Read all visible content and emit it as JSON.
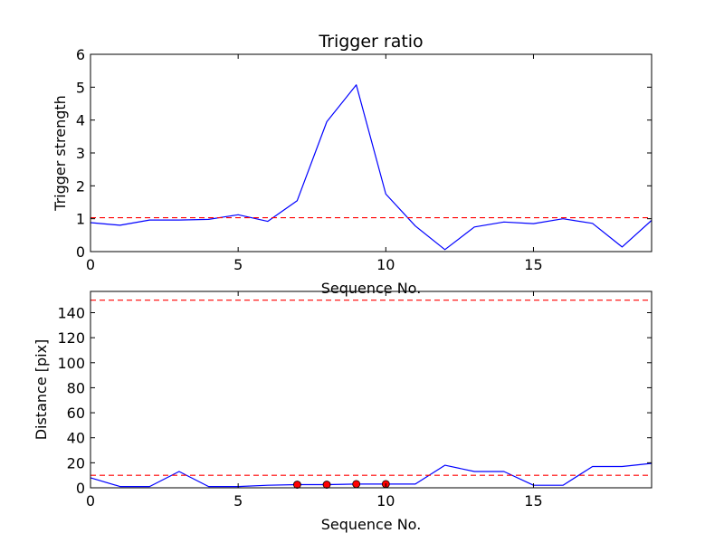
{
  "chart_data": [
    {
      "type": "line",
      "title": "Trigger ratio",
      "xlabel": "Sequence No.",
      "ylabel": "Trigger strength",
      "xlim": [
        0,
        19
      ],
      "ylim": [
        0,
        6
      ],
      "xticks": [
        0,
        5,
        10,
        15
      ],
      "yticks": [
        0,
        1,
        2,
        3,
        4,
        5,
        6
      ],
      "grid": false,
      "series": [
        {
          "color": "#0000ff",
          "style": "solid",
          "x": [
            0,
            1,
            2,
            3,
            4,
            5,
            6,
            7,
            8,
            9,
            10,
            11,
            12,
            13,
            14,
            15,
            16,
            17,
            18,
            19
          ],
          "y": [
            0.88,
            0.8,
            0.96,
            0.96,
            0.98,
            1.12,
            0.92,
            1.55,
            3.95,
            5.07,
            1.75,
            0.78,
            0.06,
            0.75,
            0.9,
            0.85,
            1.0,
            0.86,
            0.14,
            0.95
          ]
        }
      ],
      "reference_lines": [
        {
          "orientation": "horizontal",
          "value": 1.03,
          "color": "#ff0000",
          "style": "dashed"
        }
      ]
    },
    {
      "type": "line",
      "title": "",
      "xlabel": "Sequence No.",
      "ylabel": "Distance [pix]",
      "xlim": [
        0,
        19
      ],
      "ylim": [
        0,
        157
      ],
      "xticks": [
        0,
        5,
        10,
        15
      ],
      "yticks": [
        0,
        20,
        40,
        60,
        80,
        100,
        120,
        140
      ],
      "grid": false,
      "series": [
        {
          "color": "#0000ff",
          "style": "solid",
          "x": [
            0,
            1,
            2,
            3,
            4,
            5,
            6,
            7,
            8,
            9,
            10,
            11,
            12,
            13,
            14,
            15,
            16,
            17,
            18,
            19
          ],
          "y": [
            8,
            1,
            1,
            13,
            1,
            1,
            2,
            2.5,
            2.5,
            3,
            3,
            3,
            18,
            13,
            13,
            2,
            2,
            17,
            17,
            19.5
          ]
        },
        {
          "color": "#ff0000",
          "style": "markers",
          "marker": "circle",
          "x": [
            7,
            8,
            9,
            10
          ],
          "y": [
            2.5,
            2.5,
            3,
            3
          ]
        }
      ],
      "reference_lines": [
        {
          "orientation": "horizontal",
          "value": 10,
          "color": "#ff0000",
          "style": "dashed"
        },
        {
          "orientation": "horizontal",
          "value": 150,
          "color": "#ff0000",
          "style": "dashed"
        }
      ]
    }
  ]
}
